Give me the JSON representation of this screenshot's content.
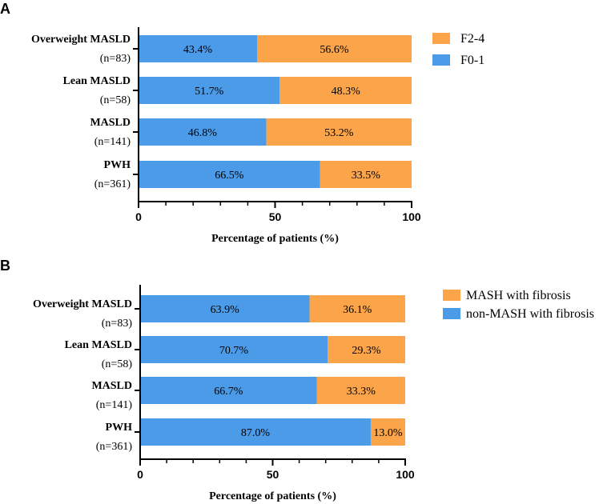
{
  "chart_data": [
    {
      "panel": "A",
      "type": "bar",
      "orientation": "horizontal",
      "stacked": true,
      "categories": [
        "Overweight MASLD",
        "Lean MASLD",
        "MASLD",
        "PWH"
      ],
      "category_counts": [
        "(n=83)",
        "(n=58)",
        "(n=141)",
        "(n=361)"
      ],
      "series": [
        {
          "name": "F0-1",
          "color": "#4C9BE8",
          "values": [
            43.4,
            51.7,
            46.8,
            66.5
          ],
          "labels": [
            "43.4%",
            "51.7%",
            "46.8%",
            "66.5%"
          ]
        },
        {
          "name": "F2-4",
          "color": "#FBA44A",
          "values": [
            56.6,
            48.3,
            53.2,
            33.5
          ],
          "labels": [
            "56.6%",
            "48.3%",
            "53.2%",
            "33.5%"
          ]
        }
      ],
      "legend": [
        {
          "name": "F2-4",
          "color": "#FBA44A"
        },
        {
          "name": "F0-1",
          "color": "#4C9BE8"
        }
      ],
      "legend_position": "top-right",
      "xlabel": "Percentage of patients (%)",
      "xlim": [
        0,
        100
      ],
      "xticks": [
        0,
        50,
        100
      ],
      "xtick_labels": [
        "0",
        "50",
        "100"
      ],
      "minor_tick_step": 10,
      "grid": false
    },
    {
      "panel": "B",
      "type": "bar",
      "orientation": "horizontal",
      "stacked": true,
      "categories": [
        "Overweight MASLD",
        "Lean MASLD",
        "MASLD",
        "PWH"
      ],
      "category_counts": [
        "(n=83)",
        "(n=58)",
        "(n=141)",
        "(n=361)"
      ],
      "series": [
        {
          "name": "non-MASH with fibrosis",
          "color": "#4C9BE8",
          "values": [
            63.9,
            70.7,
            66.7,
            87.0
          ],
          "labels": [
            "63.9%",
            "70.7%",
            "66.7%",
            "87.0%"
          ]
        },
        {
          "name": "MASH with fibrosis",
          "color": "#FBA44A",
          "values": [
            36.1,
            29.3,
            33.3,
            13.0
          ],
          "labels": [
            "36.1%",
            "29.3%",
            "33.3%",
            "13.0%"
          ]
        }
      ],
      "legend": [
        {
          "name": "MASH with fibrosis",
          "color": "#FBA44A"
        },
        {
          "name": "non-MASH with fibrosis",
          "color": "#4C9BE8"
        }
      ],
      "legend_position": "top-right",
      "xlabel": "Percentage of patients (%)",
      "xlim": [
        0,
        100
      ],
      "xticks": [
        0,
        50,
        100
      ],
      "xtick_labels": [
        "0",
        "50",
        "100"
      ],
      "minor_tick_step": 10,
      "grid": false
    }
  ]
}
